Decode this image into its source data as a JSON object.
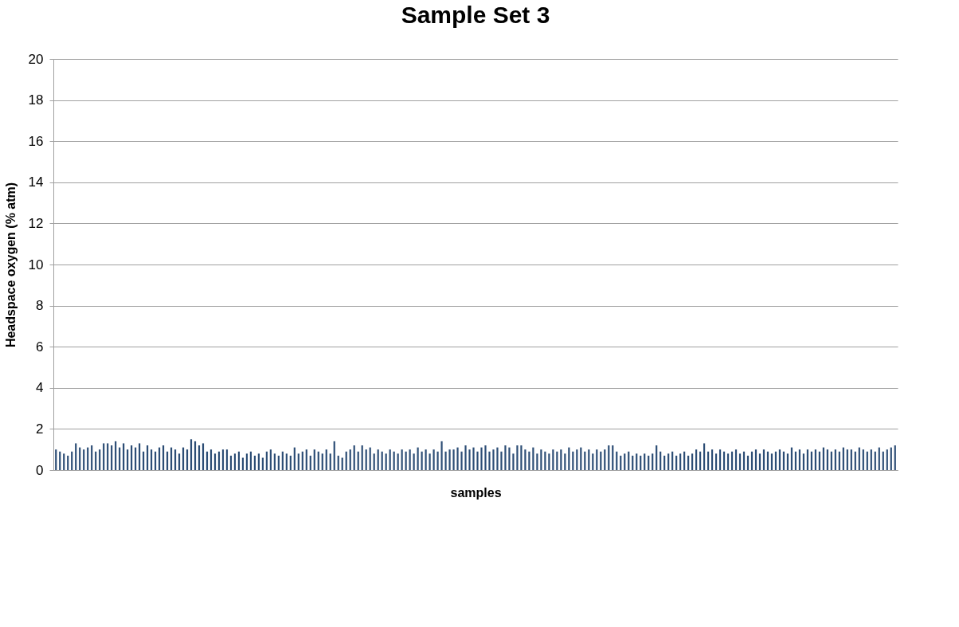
{
  "chart_data": {
    "type": "bar",
    "title": "Sample Set 3",
    "xlabel": "samples",
    "ylabel": "Headspace oxygen (% atm)",
    "categories": [
      null,
      null,
      null,
      null,
      null,
      null,
      null,
      null,
      null,
      null,
      null,
      null,
      null,
      null,
      null,
      null,
      null,
      null,
      null,
      null,
      null,
      null,
      null,
      null,
      null,
      null,
      null,
      null,
      null,
      null,
      null,
      null,
      null,
      null,
      null,
      null,
      null,
      null,
      null,
      null,
      null,
      null,
      null,
      null,
      null,
      null,
      null,
      null,
      null,
      null,
      null,
      null,
      null,
      null,
      null,
      null,
      null,
      null,
      null,
      null,
      null,
      null,
      null,
      null,
      null,
      null,
      null,
      null,
      null,
      null,
      null,
      null,
      null,
      null,
      null,
      null,
      null,
      null,
      null,
      null,
      null,
      null,
      null,
      null,
      null,
      null,
      null,
      null,
      null,
      null,
      null,
      null,
      null,
      null,
      null,
      null,
      null,
      null,
      null,
      null,
      null,
      null,
      null,
      null,
      null,
      null,
      null,
      null,
      null,
      null,
      null,
      null,
      null,
      null,
      null,
      null,
      null,
      null,
      null,
      null,
      null,
      null,
      null,
      null,
      null,
      null,
      null,
      null,
      null,
      null,
      null,
      null,
      null,
      null,
      null,
      null,
      null,
      null,
      null,
      null,
      null,
      null,
      null,
      null,
      null,
      null,
      null,
      null,
      null,
      null,
      null,
      null,
      null,
      null,
      null,
      null,
      null,
      null,
      null,
      null,
      null,
      null,
      null,
      null,
      null,
      null,
      null,
      null,
      null,
      null,
      null,
      null,
      null,
      null,
      null,
      null,
      null,
      null,
      null,
      null,
      null,
      null,
      null,
      null,
      null,
      null,
      null,
      null,
      null,
      null,
      null,
      null,
      null,
      null,
      null,
      null,
      null,
      null,
      null,
      null,
      null,
      null,
      null,
      null,
      null,
      null,
      null,
      null,
      null,
      null,
      null,
      null
    ],
    "values": [
      1.0,
      0.9,
      0.8,
      0.7,
      0.9,
      1.3,
      1.1,
      1.0,
      1.1,
      1.2,
      0.9,
      1.0,
      1.3,
      1.3,
      1.2,
      1.4,
      1.1,
      1.3,
      1.0,
      1.2,
      1.1,
      1.3,
      0.9,
      1.2,
      1.0,
      0.9,
      1.1,
      1.2,
      0.9,
      1.1,
      1.0,
      0.8,
      1.1,
      1.0,
      1.5,
      1.4,
      1.2,
      1.3,
      0.9,
      1.0,
      0.8,
      0.9,
      1.0,
      1.0,
      0.7,
      0.8,
      0.9,
      0.6,
      0.8,
      0.9,
      0.7,
      0.8,
      0.6,
      0.9,
      1.0,
      0.8,
      0.7,
      0.9,
      0.8,
      0.7,
      1.1,
      0.8,
      0.9,
      1.0,
      0.7,
      1.0,
      0.9,
      0.8,
      1.0,
      0.8,
      1.4,
      0.7,
      0.6,
      0.9,
      1.0,
      1.2,
      0.9,
      1.2,
      1.0,
      1.1,
      0.8,
      1.0,
      0.9,
      0.8,
      1.0,
      0.9,
      0.8,
      1.0,
      0.9,
      1.0,
      0.8,
      1.1,
      0.9,
      1.0,
      0.8,
      1.0,
      0.9,
      1.4,
      0.9,
      1.0,
      1.0,
      1.1,
      0.9,
      1.2,
      1.0,
      1.1,
      0.9,
      1.1,
      1.2,
      0.9,
      1.0,
      1.1,
      0.9,
      1.2,
      1.1,
      0.8,
      1.2,
      1.2,
      1.0,
      0.9,
      1.1,
      0.8,
      1.0,
      0.9,
      0.8,
      1.0,
      0.9,
      1.0,
      0.8,
      1.1,
      0.9,
      1.0,
      1.1,
      0.9,
      1.0,
      0.8,
      1.0,
      0.9,
      1.0,
      1.2,
      1.2,
      0.9,
      0.7,
      0.8,
      0.9,
      0.7,
      0.8,
      0.7,
      0.8,
      0.7,
      0.8,
      1.2,
      0.9,
      0.7,
      0.8,
      0.9,
      0.7,
      0.8,
      0.9,
      0.7,
      0.8,
      1.0,
      0.9,
      1.3,
      0.9,
      1.0,
      0.8,
      1.0,
      0.9,
      0.8,
      0.9,
      1.0,
      0.8,
      0.9,
      0.7,
      0.9,
      1.0,
      0.8,
      1.0,
      0.9,
      0.8,
      0.9,
      1.0,
      0.9,
      0.8,
      1.1,
      0.9,
      1.0,
      0.8,
      1.0,
      0.9,
      1.0,
      0.9,
      1.1,
      1.0,
      0.9,
      1.0,
      0.9,
      1.1,
      1.0,
      1.0,
      0.9,
      1.1,
      1.0,
      0.9,
      1.0,
      0.9,
      1.1,
      0.9,
      1.0,
      1.1,
      1.2
    ],
    "color": "#2c4d75",
    "ylim": [
      0,
      20
    ],
    "yticks": [
      0,
      2,
      4,
      6,
      8,
      10,
      12,
      14,
      16,
      18,
      20
    ],
    "grid": "y",
    "tick_labels": "y"
  }
}
